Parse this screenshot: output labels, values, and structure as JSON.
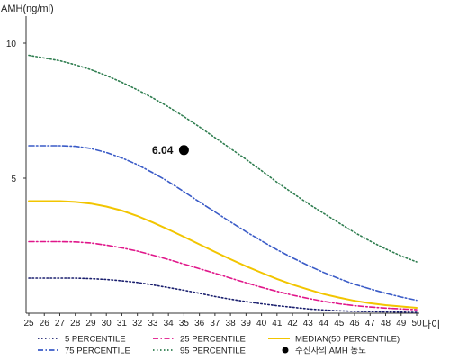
{
  "chart_data": {
    "type": "line",
    "ylabel": "AMH(ng/ml)",
    "xlabel": "나이",
    "x": [
      25,
      26,
      27,
      28,
      29,
      30,
      31,
      32,
      33,
      34,
      35,
      36,
      37,
      38,
      39,
      40,
      41,
      42,
      43,
      44,
      45,
      46,
      47,
      48,
      49,
      50
    ],
    "xlim": [
      25,
      50
    ],
    "ylim": [
      0,
      11
    ],
    "yticks": [
      5,
      10
    ],
    "grid": false,
    "legend_position": "bottom",
    "series": [
      {
        "name": "5 PERCENTILE",
        "color": "#1a1f6e",
        "style": "dotted",
        "values": [
          1.3,
          1.3,
          1.3,
          1.3,
          1.28,
          1.25,
          1.2,
          1.14,
          1.05,
          0.95,
          0.85,
          0.74,
          0.62,
          0.52,
          0.43,
          0.35,
          0.28,
          0.22,
          0.16,
          0.12,
          0.09,
          0.07,
          0.06,
          0.05,
          0.04,
          0.03
        ]
      },
      {
        "name": "25 PERCENTILE",
        "color": "#e0168a",
        "style": "dashdot",
        "values": [
          2.65,
          2.65,
          2.65,
          2.64,
          2.6,
          2.52,
          2.42,
          2.3,
          2.15,
          1.99,
          1.82,
          1.65,
          1.48,
          1.3,
          1.13,
          0.96,
          0.81,
          0.67,
          0.55,
          0.44,
          0.35,
          0.28,
          0.23,
          0.19,
          0.16,
          0.13
        ]
      },
      {
        "name": "MEDIAN(50 PERCENTILE)",
        "color": "#f2c500",
        "style": "solid",
        "values": [
          4.15,
          4.15,
          4.15,
          4.12,
          4.06,
          3.95,
          3.8,
          3.6,
          3.36,
          3.1,
          2.83,
          2.55,
          2.27,
          2.0,
          1.74,
          1.5,
          1.27,
          1.06,
          0.88,
          0.71,
          0.58,
          0.46,
          0.37,
          0.3,
          0.25,
          0.2
        ]
      },
      {
        "name": "75 PERCENTILE",
        "color": "#3a5bc7",
        "style": "dashdot",
        "values": [
          6.2,
          6.2,
          6.2,
          6.18,
          6.1,
          5.95,
          5.75,
          5.5,
          5.2,
          4.87,
          4.5,
          4.12,
          3.75,
          3.38,
          3.02,
          2.68,
          2.35,
          2.05,
          1.77,
          1.51,
          1.28,
          1.07,
          0.9,
          0.74,
          0.6,
          0.48
        ]
      },
      {
        "name": "95 PERCENTILE",
        "color": "#2e7d4f",
        "style": "dotted",
        "values": [
          9.55,
          9.45,
          9.35,
          9.2,
          9.02,
          8.8,
          8.55,
          8.27,
          7.97,
          7.64,
          7.28,
          6.9,
          6.5,
          6.1,
          5.7,
          5.28,
          4.85,
          4.45,
          4.06,
          3.7,
          3.34,
          2.99,
          2.67,
          2.38,
          2.12,
          1.9
        ]
      }
    ],
    "points": [
      {
        "name": "수진자의 AMH 농도",
        "x": 35,
        "y": 6.04,
        "label": "6.04",
        "color": "#000000"
      }
    ],
    "legend": [
      {
        "label": "5 PERCENTILE",
        "color": "#1a1f6e",
        "style": "dotted"
      },
      {
        "label": "25 PERCENTILE",
        "color": "#e0168a",
        "style": "dashdot"
      },
      {
        "label": "MEDIAN(50 PERCENTILE)",
        "color": "#f2c500",
        "style": "solid"
      },
      {
        "label": "75 PERCENTILE",
        "color": "#3a5bc7",
        "style": "dashdot"
      },
      {
        "label": "95 PERCENTILE",
        "color": "#2e7d4f",
        "style": "dotted"
      },
      {
        "label": "수진자의 AMH 농도",
        "color": "#000000",
        "style": "marker"
      }
    ]
  }
}
